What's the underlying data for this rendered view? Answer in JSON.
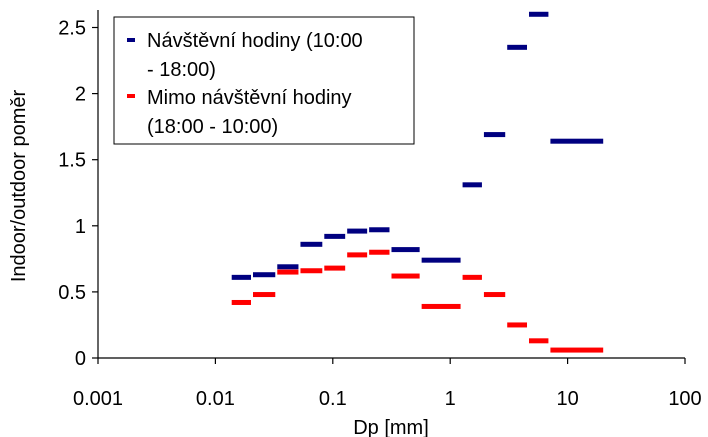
{
  "chart_data": {
    "type": "scatter",
    "title": "",
    "xlabel": "Dp [mm]",
    "ylabel": "Indoor/outdoor poměr",
    "xscale": "log",
    "xlim": [
      0.001,
      100
    ],
    "ylim": [
      0,
      2.6
    ],
    "xticks": [
      {
        "value": 0.001,
        "label": "0.001"
      },
      {
        "value": 0.01,
        "label": "0.01"
      },
      {
        "value": 0.1,
        "label": "0.1"
      },
      {
        "value": 1,
        "label": "1"
      },
      {
        "value": 10,
        "label": "10"
      },
      {
        "value": 100,
        "label": "100"
      }
    ],
    "yticks": [
      {
        "value": 0,
        "label": "0"
      },
      {
        "value": 0.5,
        "label": "0.5"
      },
      {
        "value": 1,
        "label": "1"
      },
      {
        "value": 1.5,
        "label": "1.5"
      },
      {
        "value": 2,
        "label": "2"
      },
      {
        "value": 2.5,
        "label": "2.5"
      }
    ],
    "grid": false,
    "legend_position": "top-left",
    "legend_lines": [
      [
        "Návštěvní hodiny (10:00",
        "- 18:00)"
      ],
      [
        "Mimo návštěvní hodiny",
        "(18:00 - 10:00)"
      ]
    ],
    "series": [
      {
        "name": "Návštěvní hodiny (10:00 - 18:00)",
        "color": "#000080",
        "points": [
          {
            "x_from": 0.0135,
            "x_to": 0.0205,
            "y": 0.61
          },
          {
            "x_from": 0.0205,
            "x_to": 0.033,
            "y": 0.63
          },
          {
            "x_from": 0.033,
            "x_to": 0.052,
            "y": 0.69
          },
          {
            "x_from": 0.052,
            "x_to": 0.083,
            "y": 0.86
          },
          {
            "x_from": 0.083,
            "x_to": 0.13,
            "y": 0.92
          },
          {
            "x_from": 0.13,
            "x_to": 0.2,
            "y": 0.96
          },
          {
            "x_from": 0.2,
            "x_to": 0.31,
            "y": 0.97
          },
          {
            "x_from": 0.31,
            "x_to": 0.56,
            "y": 0.82
          },
          {
            "x_from": 0.56,
            "x_to": 1.25,
            "y": 0.74
          },
          {
            "x_from": 1.25,
            "x_to": 1.9,
            "y": 1.31
          },
          {
            "x_from": 1.9,
            "x_to": 3.0,
            "y": 1.69
          },
          {
            "x_from": 3.0,
            "x_to": 4.6,
            "y": 2.35
          },
          {
            "x_from": 4.6,
            "x_to": 7.0,
            "y": 2.6
          },
          {
            "x_from": 7.0,
            "x_to": 20.5,
            "y": 1.64
          }
        ]
      },
      {
        "name": "Mimo návštěvní hodiny (18:00 - 10:00)",
        "color": "#ff0000",
        "points": [
          {
            "x_from": 0.0135,
            "x_to": 0.0205,
            "y": 0.42
          },
          {
            "x_from": 0.0205,
            "x_to": 0.033,
            "y": 0.48
          },
          {
            "x_from": 0.033,
            "x_to": 0.052,
            "y": 0.65
          },
          {
            "x_from": 0.052,
            "x_to": 0.083,
            "y": 0.66
          },
          {
            "x_from": 0.083,
            "x_to": 0.13,
            "y": 0.68
          },
          {
            "x_from": 0.13,
            "x_to": 0.2,
            "y": 0.78
          },
          {
            "x_from": 0.2,
            "x_to": 0.31,
            "y": 0.8
          },
          {
            "x_from": 0.31,
            "x_to": 0.56,
            "y": 0.62
          },
          {
            "x_from": 0.56,
            "x_to": 1.25,
            "y": 0.39
          },
          {
            "x_from": 1.25,
            "x_to": 1.9,
            "y": 0.61
          },
          {
            "x_from": 1.9,
            "x_to": 3.0,
            "y": 0.48
          },
          {
            "x_from": 3.0,
            "x_to": 4.6,
            "y": 0.25
          },
          {
            "x_from": 4.6,
            "x_to": 7.0,
            "y": 0.13
          },
          {
            "x_from": 7.0,
            "x_to": 20.5,
            "y": 0.06
          }
        ]
      }
    ]
  }
}
